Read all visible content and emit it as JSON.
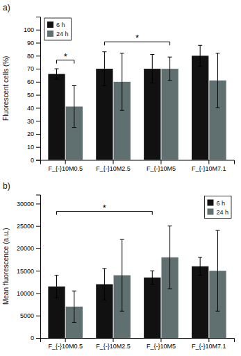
{
  "chart_data": [
    {
      "type": "bar",
      "title": "a)",
      "ylabel": "Fluorescent cells (%)",
      "categories": [
        "F_{-}10M0.5",
        "F_{-}10M2.5",
        "F_{-}10M5",
        "F_{-}10M7.1"
      ],
      "series": [
        {
          "name": "6 h",
          "color": "#111111",
          "values": [
            66,
            70,
            70,
            80
          ],
          "errors": [
            4,
            13,
            11,
            8
          ]
        },
        {
          "name": "24 h",
          "color": "#607070",
          "values": [
            41,
            60,
            70,
            61
          ],
          "errors": [
            16,
            22,
            9,
            21
          ]
        }
      ],
      "ylim": [
        0,
        110
      ],
      "yticks": [
        0,
        10,
        20,
        30,
        40,
        50,
        60,
        70,
        80,
        90,
        100
      ],
      "grid": false,
      "legend": "upper left",
      "annotations": [
        {
          "text": "*",
          "y": 74,
          "from": {
            "category": 0,
            "series": 0
          },
          "to": {
            "category": 0,
            "series": 1
          }
        },
        {
          "text": "*",
          "y": 88,
          "from": {
            "category": 1,
            "series": 0
          },
          "to": {
            "category": 2,
            "series": 1
          }
        }
      ]
    },
    {
      "type": "bar",
      "title": "b)",
      "ylabel": "Mean fluorescence (a.u.)",
      "categories": [
        "F_{-}10M0.5",
        "F_{-}10M2.5",
        "F_{-}10M5",
        "F_{-}10M7.1"
      ],
      "series": [
        {
          "name": "6 h",
          "color": "#111111",
          "values": [
            11500,
            12000,
            13500,
            16000
          ],
          "errors": [
            2500,
            3500,
            1500,
            2000
          ]
        },
        {
          "name": "24 h",
          "color": "#607070",
          "values": [
            7000,
            14000,
            18000,
            15000
          ],
          "errors": [
            3500,
            8000,
            7000,
            9000
          ]
        }
      ],
      "ylim": [
        0,
        32000
      ],
      "yticks": [
        0,
        5000,
        10000,
        15000,
        20000,
        25000,
        30000
      ],
      "grid": false,
      "legend": "upper right",
      "annotations": [
        {
          "text": "*",
          "y": 27500,
          "from": {
            "category": 0,
            "series": 0
          },
          "to": {
            "category": 2,
            "series": 0
          }
        }
      ]
    }
  ]
}
